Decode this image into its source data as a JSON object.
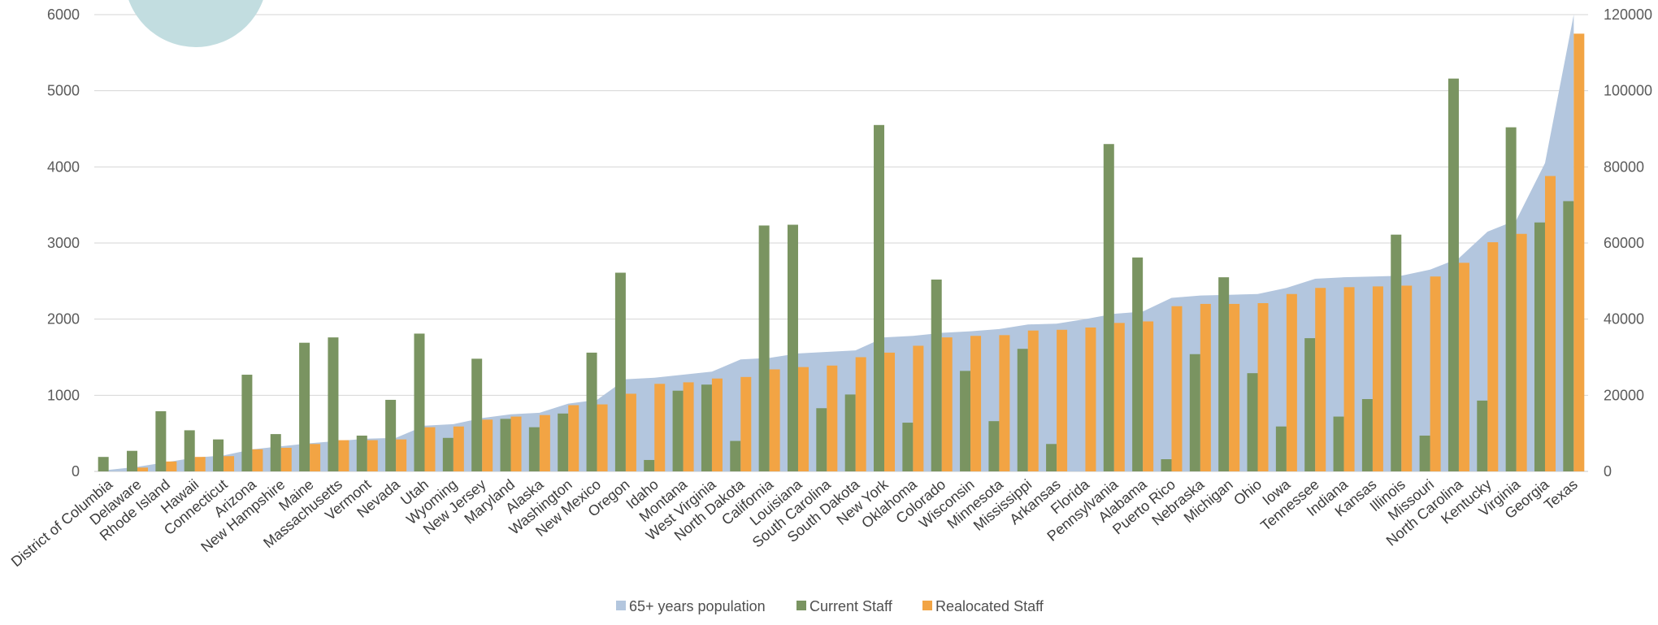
{
  "chart_data": {
    "type": "bar",
    "categories": [
      "District of Columbia",
      "Delaware",
      "Rhode Island",
      "Hawaii",
      "Connecticut",
      "Arizona",
      "New Hampshire",
      "Maine",
      "Massachusetts",
      "Vermont",
      "Nevada",
      "Utah",
      "Wyoming",
      "New Jersey",
      "Maryland",
      "Alaska",
      "Washington",
      "New Mexico",
      "Oregon",
      "Idaho",
      "Montana",
      "West Virginia",
      "North Dakota",
      "California",
      "Louisiana",
      "South Carolina",
      "South Dakota",
      "New York",
      "Oklahoma",
      "Colorado",
      "Wisconsin",
      "Minnesota",
      "Mississippi",
      "Arkansas",
      "Florida",
      "Pennsylvania",
      "Alabama",
      "Puerto Rico",
      "Nebraska",
      "Michigan",
      "Ohio",
      "Iowa",
      "Tennessee",
      "Indiana",
      "Kansas",
      "Illinois",
      "Missouri",
      "North Carolina",
      "Kentucky",
      "Virginia",
      "Georgia",
      "Texas"
    ],
    "series": [
      {
        "name": "65+ years population",
        "kind": "area",
        "axis": "right",
        "values": [
          400,
          1200,
          2400,
          3600,
          4200,
          5800,
          6600,
          7400,
          8000,
          8600,
          8800,
          12000,
          12400,
          14000,
          15000,
          15400,
          17800,
          18800,
          24200,
          24600,
          25400,
          26200,
          29400,
          29800,
          31000,
          31400,
          31800,
          35200,
          35600,
          36400,
          36800,
          37400,
          38600,
          38800,
          40000,
          41400,
          42000,
          45600,
          46200,
          46400,
          46600,
          48200,
          50600,
          51000,
          51200,
          51400,
          53000,
          56000,
          63000,
          66000,
          81000,
          120000
        ],
        "color": "#b3c6de"
      },
      {
        "name": "Current Staff",
        "kind": "bar",
        "axis": "left",
        "values": [
          190,
          270,
          790,
          540,
          420,
          1270,
          490,
          1690,
          1760,
          470,
          940,
          1810,
          440,
          1480,
          690,
          580,
          760,
          1560,
          2610,
          150,
          1060,
          1140,
          400,
          3230,
          3240,
          830,
          1010,
          4550,
          640,
          2520,
          1320,
          660,
          1610,
          360,
          0,
          4300,
          2810,
          160,
          1540,
          2550,
          1290,
          590,
          1750,
          720,
          950,
          3110,
          470,
          5160,
          930,
          4520,
          3270,
          3550
        ],
        "color": "#7a9461"
      },
      {
        "name": "Realocated Staff",
        "kind": "bar",
        "axis": "left",
        "values": [
          0,
          50,
          130,
          190,
          200,
          290,
          310,
          360,
          410,
          410,
          420,
          580,
          590,
          680,
          720,
          740,
          870,
          880,
          1020,
          1150,
          1170,
          1220,
          1240,
          1340,
          1370,
          1390,
          1500,
          1560,
          1650,
          1760,
          1780,
          1790,
          1850,
          1860,
          1890,
          1950,
          1970,
          2170,
          2200,
          2200,
          2210,
          2330,
          2410,
          2420,
          2430,
          2440,
          2560,
          2740,
          3010,
          3120,
          3880,
          5750
        ],
        "color": "#f2a444"
      }
    ],
    "left_axis": {
      "min": 0,
      "max": 6000,
      "ticks": [
        0,
        1000,
        2000,
        3000,
        4000,
        5000,
        6000
      ]
    },
    "right_axis": {
      "min": 0,
      "max": 120000,
      "ticks": [
        0,
        20000,
        40000,
        60000,
        80000,
        100000,
        120000
      ]
    },
    "grid": true,
    "legend_position": "bottom",
    "decoration_color": "#c2dde0"
  }
}
